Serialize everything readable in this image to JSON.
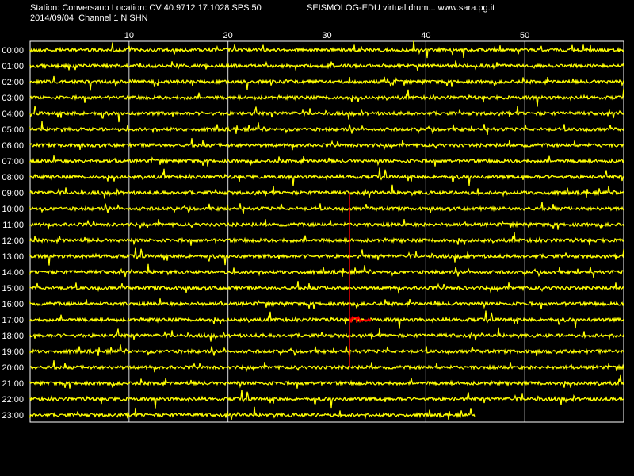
{
  "header": {
    "station_info": "Station: Conversano Location: CV 40.9712 17.1028 SPS:50",
    "date_channel": "2014/09/04  Channel 1 N SHN",
    "title": "SEISMOLOG-EDU virtual drum... www.sara.pg.it"
  },
  "colors": {
    "background": "#000000",
    "trace": "#ffff00",
    "grid": "#ffffff",
    "event_marker": "#ff0000",
    "text": "#ffffff"
  },
  "chart_data": {
    "type": "line",
    "title": "SEISMOLOG-EDU virtual drum... www.sara.pg.it",
    "xlabel": "",
    "ylabel": "",
    "x_unit_label": "",
    "xlim": [
      0,
      60
    ],
    "x_ticks": [
      10,
      20,
      30,
      40,
      50
    ],
    "rows": [
      "00:00",
      "01:00",
      "02:00",
      "03:00",
      "04:00",
      "05:00",
      "06:00",
      "07:00",
      "08:00",
      "09:00",
      "10:00",
      "11:00",
      "12:00",
      "13:00",
      "14:00",
      "15:00",
      "16:00",
      "17:00",
      "18:00",
      "19:00",
      "20:00",
      "21:00",
      "22:00",
      "23:00"
    ],
    "last_row_end_minute": 45,
    "grid": true,
    "event_marker": {
      "minute": 32.3,
      "from_row": "09:00",
      "to_row": "20:00",
      "highlight_row": "17:00",
      "highlight_end_minute": 34.5
    }
  }
}
